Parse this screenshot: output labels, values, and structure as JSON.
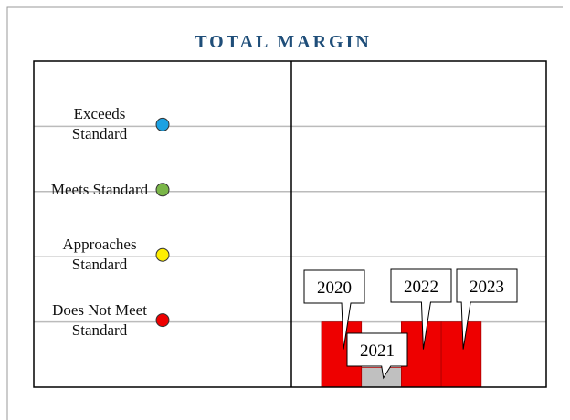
{
  "chart_data": {
    "type": "bar",
    "title": "TOTAL MARGIN",
    "categories": [
      "2020",
      "2021",
      "2022",
      "2023"
    ],
    "values": [
      1,
      0.3,
      1,
      1
    ],
    "colors": [
      "#ee0000",
      "#c0c0c0",
      "#ee0000",
      "#ee0000"
    ],
    "ylim": [
      0,
      5
    ],
    "yticks": [
      {
        "value": 1,
        "label": "Does Not Meet Standard"
      },
      {
        "value": 2,
        "label": "Approaches Standard"
      },
      {
        "value": 3,
        "label": "Meets Standard"
      },
      {
        "value": 4,
        "label": "Exceeds Standard"
      }
    ],
    "level_colors": [
      "#ee0000",
      "#ffee00",
      "#7ab648",
      "#1ba1e2"
    ],
    "grid": true
  }
}
